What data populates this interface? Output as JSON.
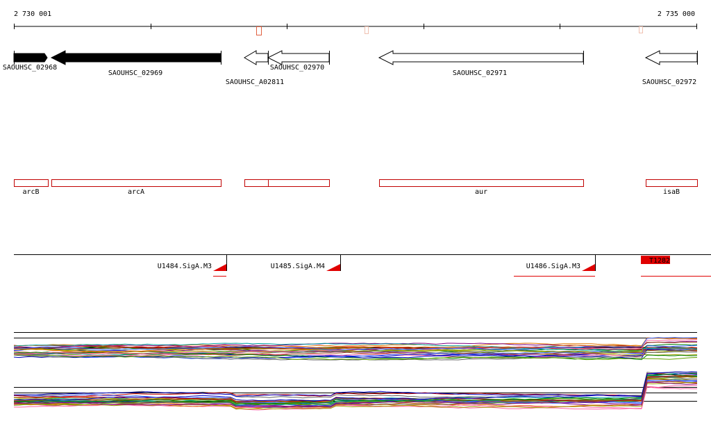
{
  "ruler": {
    "start": "2 730 001",
    "end": "2 735 000"
  },
  "genes": [
    "SAOUHSC_02968",
    "SAOUHSC_02969",
    "SAOUHSC_A02811",
    "SAOUHSC_02970",
    "SAOUHSC_02971",
    "SAOUHSC_02972"
  ],
  "features": [
    "arcB",
    "arcA",
    "aur",
    "isaB"
  ],
  "promoters": [
    "U1484.SigA.M3",
    "U1485.SigA.M4",
    "U1486.SigA.M3"
  ],
  "overlap_label": "T1282"
}
